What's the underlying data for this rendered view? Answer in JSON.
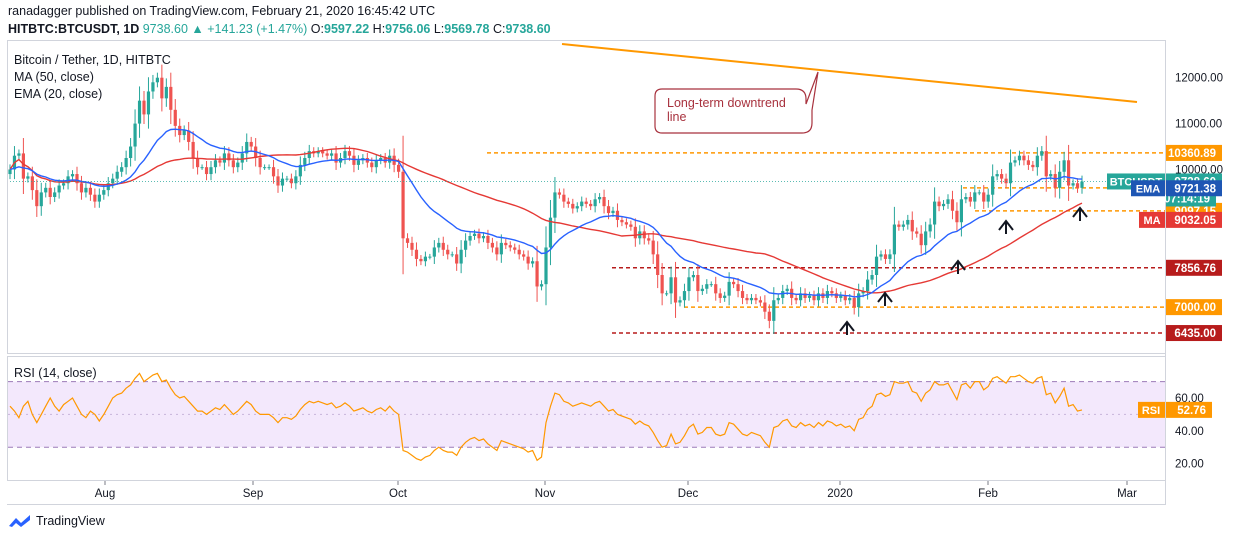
{
  "header": {
    "publisher_line": "ranadagger published on TradingView.com, February 21, 2020 16:45:42 UTC",
    "symbol": "HITBTC:BTCUSDT, 1D",
    "change": "9738.60 ▲ +141.23 (+1.47%)",
    "open_label": "O:",
    "open": "9597.22",
    "high_label": "H:",
    "high": "9756.06",
    "low_label": "L:",
    "low": "9569.78",
    "close_label": "C:",
    "close": "9738.60"
  },
  "legend": {
    "title": "Bitcoin / Tether, 1D, HITBTC",
    "ma": "MA (50, close)",
    "ema": "EMA (20, close)",
    "rsi": "RSI (14, close)"
  },
  "annotation": {
    "line1": "Long-term downtrend",
    "line2": "line"
  },
  "footer": {
    "brand": "TradingView"
  },
  "colors": {
    "up": "#26a69a",
    "down": "#ef5350",
    "ema": "#2962ff",
    "ma": "#e53935",
    "orange": "#ff9800",
    "darkred": "#b71c1c",
    "rsi": "#ff9800",
    "rsi_bg": "#f3e8fc"
  },
  "chart_data": [
    {
      "type": "candlestick",
      "title": "Bitcoin / Tether, 1D, HITBTC",
      "ylim": [
        6000,
        12800
      ],
      "y_ticks": [
        12000,
        11000,
        10000
      ],
      "x_ticks": [
        "Aug",
        "Sep",
        "Oct",
        "Nov",
        "Dec",
        "2020",
        "Feb",
        "Mar"
      ],
      "series": [
        {
          "name": "BTCUSDT",
          "last": 9738.6,
          "extra_label": "07:14:19"
        },
        {
          "name": "EMA",
          "last": 9721.38
        },
        {
          "name": "MA",
          "last": 9032.05
        }
      ],
      "horizontal_levels": [
        {
          "value": 10360.89,
          "label": "10360.89",
          "style": "orange"
        },
        {
          "value": 9600.0,
          "label": "9600.00",
          "style": "orange"
        },
        {
          "value": 9097.15,
          "label": "9097.15",
          "style": "orange"
        },
        {
          "value": 7856.76,
          "label": "7856.76",
          "style": "darkred"
        },
        {
          "value": 7000.0,
          "label": "7000.00",
          "style": "orange"
        },
        {
          "value": 6435.0,
          "label": "6435.00",
          "style": "darkred"
        }
      ],
      "close_prices": [
        10000,
        10300,
        10350,
        9800,
        9850,
        9550,
        9200,
        9500,
        9600,
        9400,
        9500,
        9650,
        9700,
        9850,
        9900,
        9700,
        9500,
        9600,
        9450,
        9300,
        9450,
        9550,
        9700,
        9800,
        9950,
        10050,
        10250,
        10500,
        11000,
        11500,
        11200,
        11700,
        11900,
        12000,
        11550,
        11800,
        11300,
        10950,
        10750,
        10850,
        10600,
        10250,
        10050,
        10050,
        9900,
        10050,
        10200,
        10150,
        10350,
        10200,
        10050,
        10150,
        10350,
        10600,
        10500,
        10250,
        10050,
        10050,
        10050,
        9850,
        9650,
        9800,
        9800,
        9700,
        9850,
        10100,
        10250,
        10400,
        10350,
        10400,
        10350,
        10300,
        10350,
        10150,
        10250,
        10400,
        10300,
        10100,
        10200,
        10250,
        10150,
        10050,
        10200,
        10250,
        10150,
        10300,
        10100,
        9950,
        8500,
        8400,
        8250,
        8050,
        8000,
        8100,
        8100,
        8300,
        8400,
        8250,
        8150,
        8150,
        7950,
        8250,
        8450,
        8550,
        8600,
        8500,
        8550,
        8400,
        8300,
        8150,
        8400,
        8350,
        8300,
        8250,
        8150,
        8100,
        7950,
        8000,
        7450,
        7500,
        8300,
        8950,
        9500,
        9450,
        9300,
        9250,
        9150,
        9200,
        9300,
        9250,
        9200,
        9350,
        9400,
        9200,
        9050,
        9100,
        8900,
        8850,
        8800,
        8750,
        8500,
        8650,
        8500,
        8450,
        8150,
        7700,
        7300,
        7300,
        7650,
        7100,
        7150,
        7350,
        7650,
        7700,
        7350,
        7400,
        7500,
        7500,
        7300,
        7200,
        7250,
        7550,
        7500,
        7350,
        7200,
        7150,
        7200,
        7150,
        7100,
        6900,
        6700,
        7150,
        7200,
        7350,
        7400,
        7200,
        7150,
        7300,
        7200,
        7250,
        7150,
        7300,
        7200,
        7350,
        7300,
        7200,
        7250,
        7150,
        7200,
        7000,
        7300,
        7350,
        7600,
        7700,
        8100,
        8150,
        8050,
        8150,
        8800,
        8750,
        8800,
        8900,
        8650,
        8600,
        8350,
        8650,
        8800,
        9300,
        9200,
        9250,
        9350,
        9100,
        8850,
        9350,
        9400,
        9300,
        9500,
        9500,
        9300,
        9450,
        9850,
        9900,
        9800,
        9700,
        10150,
        10200,
        10300,
        10200,
        10100,
        10050,
        10300,
        10400,
        9850,
        9900,
        9600,
        9950,
        10200,
        9650,
        9700,
        9600,
        9738
      ]
    },
    {
      "type": "line",
      "title": "RSI (14, close)",
      "ylim": [
        10,
        85
      ],
      "y_ticks": [
        60,
        40,
        20
      ],
      "band": [
        30,
        70
      ],
      "last": 52.76,
      "last_label": "RSI",
      "values": [
        55,
        52,
        48,
        55,
        58,
        50,
        45,
        50,
        55,
        60,
        55,
        52,
        56,
        58,
        60,
        55,
        50,
        48,
        52,
        50,
        46,
        50,
        55,
        60,
        62,
        63,
        66,
        68,
        72,
        75,
        70,
        72,
        74,
        75,
        70,
        71,
        66,
        62,
        60,
        61,
        58,
        55,
        52,
        52,
        50,
        52,
        54,
        53,
        56,
        53,
        50,
        52,
        55,
        58,
        56,
        52,
        50,
        50,
        50,
        48,
        45,
        48,
        48,
        47,
        49,
        53,
        56,
        58,
        57,
        58,
        57,
        56,
        57,
        54,
        55,
        57,
        55,
        52,
        53,
        54,
        52,
        51,
        53,
        54,
        52,
        55,
        52,
        50,
        28,
        27,
        25,
        23,
        22,
        24,
        25,
        28,
        30,
        28,
        27,
        27,
        25,
        30,
        33,
        35,
        36,
        34,
        35,
        32,
        30,
        28,
        34,
        33,
        32,
        31,
        30,
        29,
        27,
        28,
        22,
        24,
        45,
        55,
        63,
        62,
        58,
        57,
        55,
        56,
        57,
        56,
        55,
        57,
        58,
        55,
        52,
        53,
        50,
        49,
        48,
        47,
        44,
        46,
        44,
        43,
        39,
        34,
        30,
        31,
        38,
        32,
        33,
        37,
        42,
        44,
        38,
        39,
        42,
        42,
        38,
        37,
        38,
        45,
        44,
        41,
        38,
        37,
        39,
        38,
        37,
        33,
        30,
        42,
        43,
        46,
        47,
        43,
        42,
        45,
        43,
        44,
        42,
        45,
        43,
        46,
        45,
        43,
        44,
        42,
        43,
        40,
        47,
        48,
        53,
        55,
        62,
        63,
        61,
        62,
        70,
        69,
        69,
        70,
        64,
        63,
        58,
        63,
        65,
        70,
        68,
        68,
        69,
        64,
        59,
        68,
        69,
        66,
        70,
        70,
        65,
        67,
        72,
        73,
        71,
        69,
        73,
        73,
        74,
        72,
        70,
        69,
        72,
        73,
        62,
        63,
        57,
        61,
        66,
        55,
        56,
        52,
        52.76
      ]
    }
  ]
}
